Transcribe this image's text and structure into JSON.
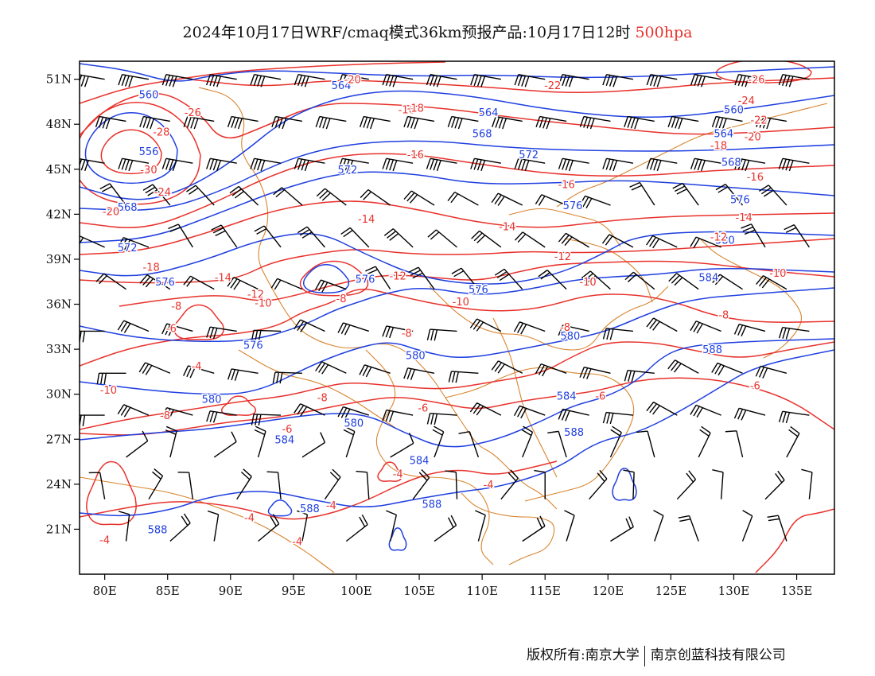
{
  "title": {
    "text": "2024年10月17日WRF/cmaq模式36km预报产品:10月17日12时",
    "level": "500hpa"
  },
  "colors": {
    "height_contour": "#1f3fe0",
    "temperature_contour": "#e8322c",
    "border": "#d8842e",
    "wind_barb": "#000000",
    "level_text": "#e8322c"
  },
  "axes": {
    "lat_labels": [
      "51N",
      "48N",
      "45N",
      "42N",
      "39N",
      "36N",
      "33N",
      "30N",
      "27N",
      "24N",
      "21N"
    ],
    "lon_labels": [
      "80E",
      "85E",
      "90E",
      "95E",
      "100E",
      "105E",
      "110E",
      "115E",
      "120E",
      "125E",
      "130E",
      "135E"
    ]
  },
  "height_contours": [
    {
      "label": "556",
      "lon": 83.5,
      "lat": 46.2
    },
    {
      "label": "560",
      "lon": 83.5,
      "lat": 50.0
    },
    {
      "label": "564",
      "lon": 98.8,
      "lat": 50.6
    },
    {
      "label": "568",
      "lon": 81.8,
      "lat": 42.5
    },
    {
      "label": "572",
      "lon": 81.8,
      "lat": 39.8
    },
    {
      "label": "576",
      "lon": 84.8,
      "lat": 37.5
    },
    {
      "label": "580",
      "lon": 88.5,
      "lat": 29.7
    },
    {
      "label": "584",
      "lon": 94.3,
      "lat": 27.0
    },
    {
      "label": "588",
      "lon": 84.2,
      "lat": 21.0
    },
    {
      "label": "564",
      "lon": 110.5,
      "lat": 48.8
    },
    {
      "label": "568",
      "lon": 110.0,
      "lat": 47.4
    },
    {
      "label": "572",
      "lon": 113.7,
      "lat": 46.0
    },
    {
      "label": "572",
      "lon": 99.3,
      "lat": 45.0
    },
    {
      "label": "576",
      "lon": 117.2,
      "lat": 42.6
    },
    {
      "label": "576",
      "lon": 100.7,
      "lat": 37.7
    },
    {
      "label": "576",
      "lon": 109.7,
      "lat": 37.0
    },
    {
      "label": "576",
      "lon": 91.8,
      "lat": 33.3
    },
    {
      "label": "580",
      "lon": 104.7,
      "lat": 32.6
    },
    {
      "label": "580",
      "lon": 117.0,
      "lat": 33.9
    },
    {
      "label": "584",
      "lon": 116.7,
      "lat": 29.9
    },
    {
      "label": "580",
      "lon": 99.8,
      "lat": 28.1
    },
    {
      "label": "584",
      "lon": 105.0,
      "lat": 25.6
    },
    {
      "label": "588",
      "lon": 117.3,
      "lat": 27.5
    },
    {
      "label": "588",
      "lon": 96.3,
      "lat": 22.4
    },
    {
      "label": "588",
      "lon": 106.0,
      "lat": 22.7
    },
    {
      "label": "588",
      "lon": 128.3,
      "lat": 33.0
    },
    {
      "label": "584",
      "lon": 128.0,
      "lat": 37.8
    },
    {
      "label": "580",
      "lon": 129.3,
      "lat": 40.3
    },
    {
      "label": "576",
      "lon": 130.5,
      "lat": 43.0
    },
    {
      "label": "568",
      "lon": 129.8,
      "lat": 45.5
    },
    {
      "label": "564",
      "lon": 129.2,
      "lat": 47.4
    },
    {
      "label": "560",
      "lon": 130.0,
      "lat": 49.0
    }
  ],
  "temperature_contours": [
    {
      "label": "-30",
      "lon": 83.5,
      "lat": 45.0
    },
    {
      "label": "-28",
      "lon": 84.5,
      "lat": 47.5
    },
    {
      "label": "-26",
      "lon": 87.0,
      "lat": 48.8
    },
    {
      "label": "-24",
      "lon": 84.6,
      "lat": 43.5
    },
    {
      "label": "-20",
      "lon": 80.5,
      "lat": 42.2
    },
    {
      "label": "-18",
      "lon": 83.7,
      "lat": 38.5
    },
    {
      "label": "-16",
      "lon": 104.0,
      "lat": 49.0
    },
    {
      "label": "-14",
      "lon": 89.4,
      "lat": 37.8
    },
    {
      "label": "-12",
      "lon": 92.0,
      "lat": 36.7
    },
    {
      "label": "-10",
      "lon": 92.6,
      "lat": 36.1
    },
    {
      "label": "-8",
      "lon": 85.7,
      "lat": 35.9
    },
    {
      "label": "-6",
      "lon": 85.3,
      "lat": 34.4
    },
    {
      "label": "-4",
      "lon": 87.3,
      "lat": 31.9
    },
    {
      "label": "-10",
      "lon": 80.3,
      "lat": 30.3
    },
    {
      "label": "-8",
      "lon": 84.8,
      "lat": 28.6
    },
    {
      "label": "-6",
      "lon": 94.5,
      "lat": 27.7
    },
    {
      "label": "-4",
      "lon": 91.5,
      "lat": 21.8
    },
    {
      "label": "-4",
      "lon": 80.0,
      "lat": 20.3
    },
    {
      "label": "-4",
      "lon": 95.3,
      "lat": 20.2
    },
    {
      "label": "-20",
      "lon": 99.7,
      "lat": 51.0
    },
    {
      "label": "-18",
      "lon": 104.7,
      "lat": 49.1
    },
    {
      "label": "-16",
      "lon": 104.7,
      "lat": 46.0
    },
    {
      "label": "-16",
      "lon": 116.7,
      "lat": 44.0
    },
    {
      "label": "-14",
      "lon": 100.8,
      "lat": 41.7
    },
    {
      "label": "-14",
      "lon": 112.0,
      "lat": 41.2
    },
    {
      "label": "-12",
      "lon": 116.4,
      "lat": 39.2
    },
    {
      "label": "-12",
      "lon": 103.3,
      "lat": 37.9
    },
    {
      "label": "-10",
      "lon": 118.4,
      "lat": 37.5
    },
    {
      "label": "-10",
      "lon": 108.3,
      "lat": 36.2
    },
    {
      "label": "-8",
      "lon": 98.8,
      "lat": 36.4
    },
    {
      "label": "-8",
      "lon": 104.0,
      "lat": 34.1
    },
    {
      "label": "-8",
      "lon": 116.6,
      "lat": 34.5
    },
    {
      "label": "-8",
      "lon": 97.3,
      "lat": 29.8
    },
    {
      "label": "-6",
      "lon": 105.3,
      "lat": 29.1
    },
    {
      "label": "-6",
      "lon": 119.4,
      "lat": 29.9
    },
    {
      "label": "-4",
      "lon": 103.3,
      "lat": 24.7
    },
    {
      "label": "-4",
      "lon": 110.5,
      "lat": 24.0
    },
    {
      "label": "-4",
      "lon": 98.0,
      "lat": 22.6
    },
    {
      "label": "-22",
      "lon": 115.6,
      "lat": 50.6
    },
    {
      "label": "-18",
      "lon": 128.8,
      "lat": 46.6
    },
    {
      "label": "-16",
      "lon": 131.7,
      "lat": 44.5
    },
    {
      "label": "-14",
      "lon": 130.8,
      "lat": 41.8
    },
    {
      "label": "-12",
      "lon": 128.8,
      "lat": 40.5
    },
    {
      "label": "-10",
      "lon": 133.5,
      "lat": 38.1
    },
    {
      "label": "-8",
      "lon": 129.2,
      "lat": 35.3
    },
    {
      "label": "-6",
      "lon": 131.7,
      "lat": 30.6
    },
    {
      "label": "-24",
      "lon": 131.0,
      "lat": 49.6
    },
    {
      "label": "-26",
      "lon": 131.8,
      "lat": 51.0
    },
    {
      "label": "-22",
      "lon": 132.0,
      "lat": 48.3
    },
    {
      "label": "-20",
      "lon": 131.5,
      "lat": 47.2
    }
  ],
  "footer": {
    "left": "版权所有:南京大学",
    "right": "南京创蓝科技有限公司"
  }
}
